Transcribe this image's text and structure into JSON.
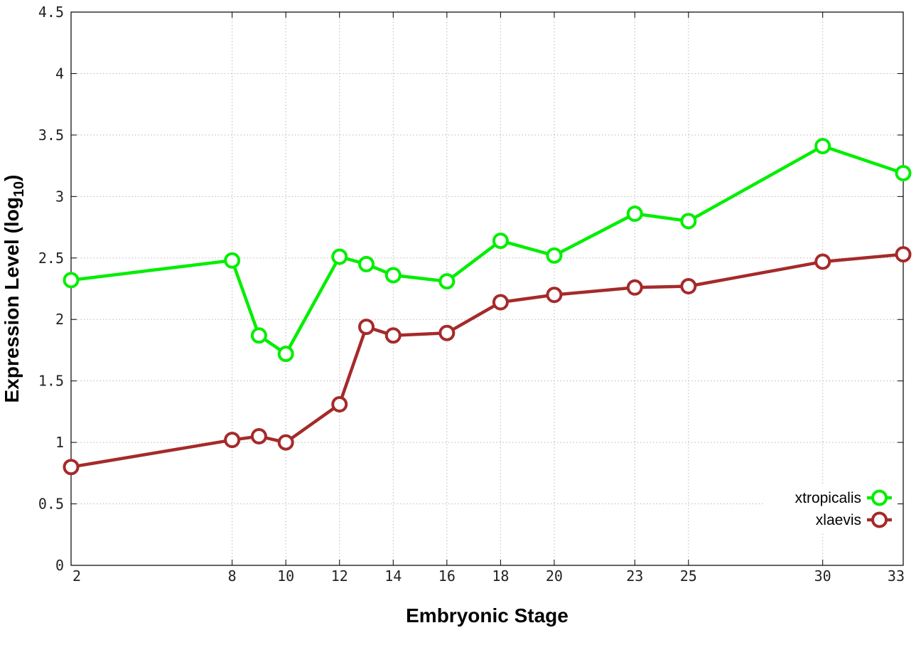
{
  "chart_data": {
    "type": "line",
    "title": "",
    "xlabel": "Embryonic Stage",
    "ylabel": {
      "main": "Expression Level (log",
      "subscript": "10",
      "suffix": ")"
    },
    "x_tick_labels": [
      "2",
      "8",
      "10",
      "12",
      "14",
      "16",
      "18",
      "20",
      "23",
      "25",
      "30",
      "33"
    ],
    "x_categories": [
      "2",
      "8",
      "9",
      "10",
      "12",
      "13",
      "14",
      "16",
      "18",
      "20",
      "23",
      "25",
      "30",
      "33"
    ],
    "y_tick_labels": [
      "0",
      "0.5",
      "1",
      "1.5",
      "2",
      "2.5",
      "3",
      "3.5",
      "4",
      "4.5"
    ],
    "xlim": [
      2,
      33
    ],
    "ylim": [
      0,
      4.5
    ],
    "grid": true,
    "legend_position": "bottom-right",
    "series": [
      {
        "name": "xtropicalis",
        "color": "#00ee00",
        "x": [
          2,
          8,
          9,
          10,
          12,
          13,
          14,
          16,
          18,
          20,
          23,
          25,
          30,
          33
        ],
        "values": [
          2.32,
          2.48,
          1.87,
          1.72,
          2.51,
          2.45,
          2.36,
          2.31,
          2.64,
          2.52,
          2.86,
          2.8,
          3.41,
          3.19
        ]
      },
      {
        "name": "xlaevis",
        "color": "#a52a2a",
        "x": [
          2,
          8,
          9,
          10,
          12,
          13,
          14,
          16,
          18,
          20,
          23,
          25,
          30,
          33
        ],
        "values": [
          0.8,
          1.02,
          1.05,
          1.0,
          1.31,
          1.94,
          1.87,
          1.89,
          2.14,
          2.2,
          2.26,
          2.27,
          2.47,
          2.53
        ]
      }
    ]
  }
}
